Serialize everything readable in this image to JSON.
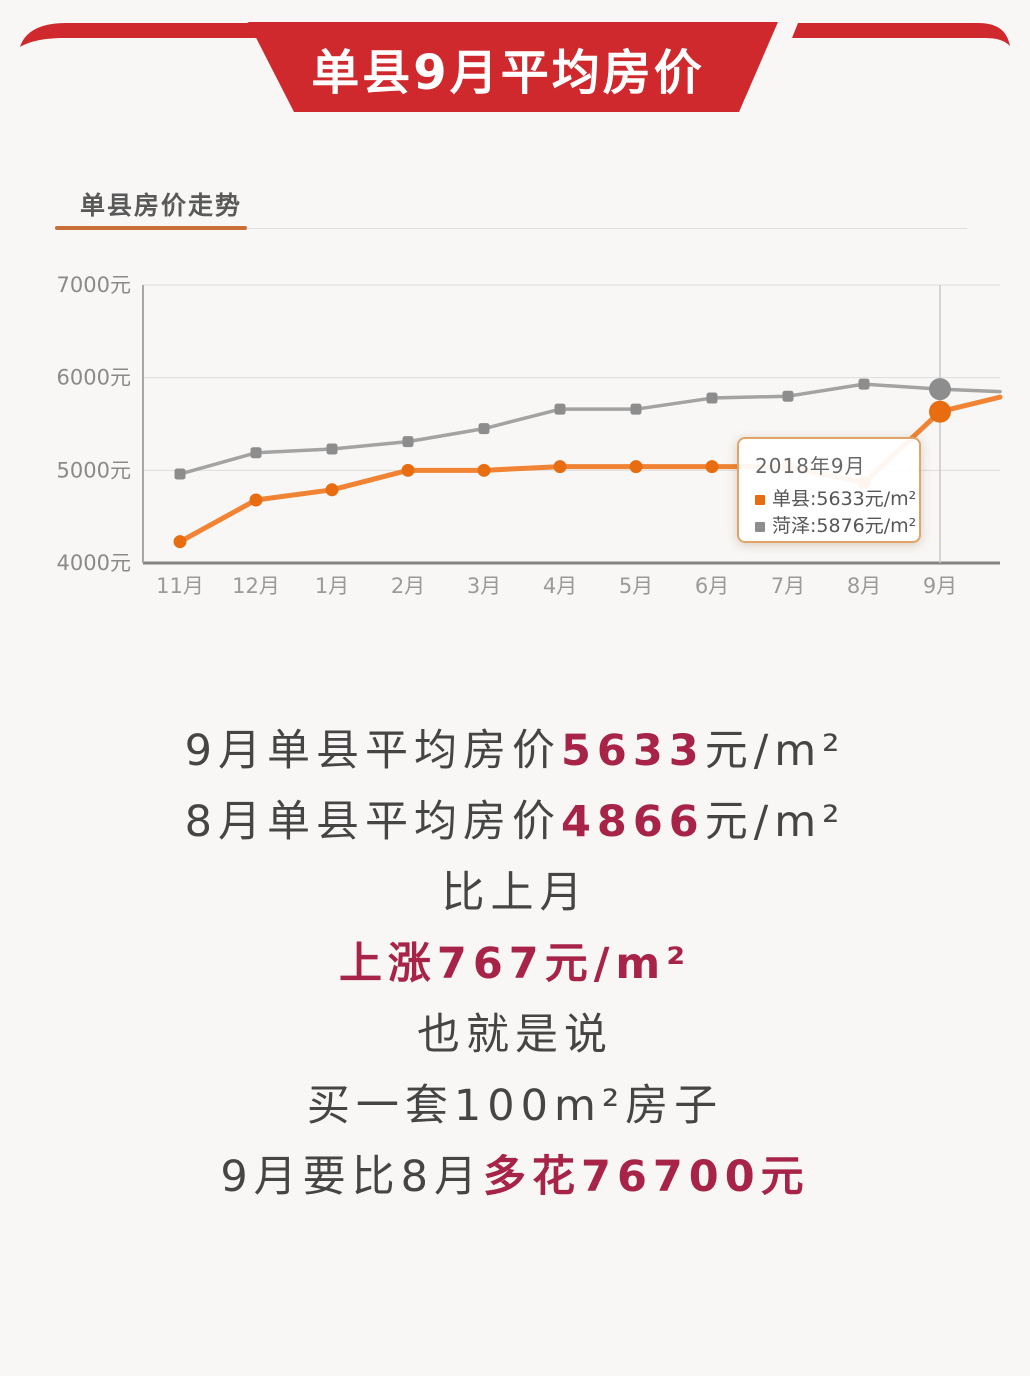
{
  "banner": {
    "title": "单县9月平均房价",
    "bg_color": "#d0292d"
  },
  "chart_header": {
    "title": "单县房价走势",
    "underline_color": "#c96f35"
  },
  "chart_data": {
    "type": "line",
    "title": "单县房价走势",
    "categories": [
      "11月",
      "12月",
      "1月",
      "2月",
      "3月",
      "4月",
      "5月",
      "6月",
      "7月",
      "8月",
      "9月"
    ],
    "series": [
      {
        "id": "shanxian",
        "name": "单县",
        "color": "#f08434",
        "marker_color": "#e76d10",
        "marker_shape": "circle",
        "values": [
          4230,
          4680,
          4790,
          5000,
          5000,
          5040,
          5040,
          5040,
          5040,
          4866,
          5633
        ],
        "edge_value": 5790
      },
      {
        "id": "heze",
        "name": "菏泽",
        "color": "#a3a3a3",
        "marker_color": "#8d8d8d",
        "marker_shape": "square",
        "values": [
          4960,
          5190,
          5230,
          5310,
          5450,
          5660,
          5660,
          5780,
          5800,
          5930,
          5876
        ],
        "edge_value": 5850
      }
    ],
    "ylim": [
      4000,
      7000
    ],
    "yticks": [
      {
        "value": 7000,
        "label": "7000元"
      },
      {
        "value": 6000,
        "label": "6000元"
      },
      {
        "value": 5000,
        "label": "5000元"
      },
      {
        "value": 4000,
        "label": "4000元"
      }
    ],
    "highlight_index": 10,
    "grid": true,
    "legend_position": "tooltip"
  },
  "tooltip": {
    "title": "2018年9月",
    "rows": [
      {
        "label": "单县:",
        "value": "5633元/m²"
      },
      {
        "label": "菏泽:",
        "value": "5876元/m²"
      }
    ]
  },
  "summary": {
    "em_color": "#a72348",
    "lines": [
      {
        "pre": "9月单县平均房价",
        "em": "5633",
        "post": "元/m²"
      },
      {
        "pre": "8月单县平均房价",
        "em": "4866",
        "post": "元/m²"
      },
      {
        "pre": "比上月",
        "em": "",
        "post": ""
      },
      {
        "pre": "",
        "em": "上涨767元/m²",
        "post": ""
      },
      {
        "pre": "也就是说",
        "em": "",
        "post": ""
      },
      {
        "pre": "买一套100m²房子",
        "em": "",
        "post": ""
      },
      {
        "pre": "9月要比8月",
        "em": "多花76700元",
        "post": ""
      }
    ]
  }
}
